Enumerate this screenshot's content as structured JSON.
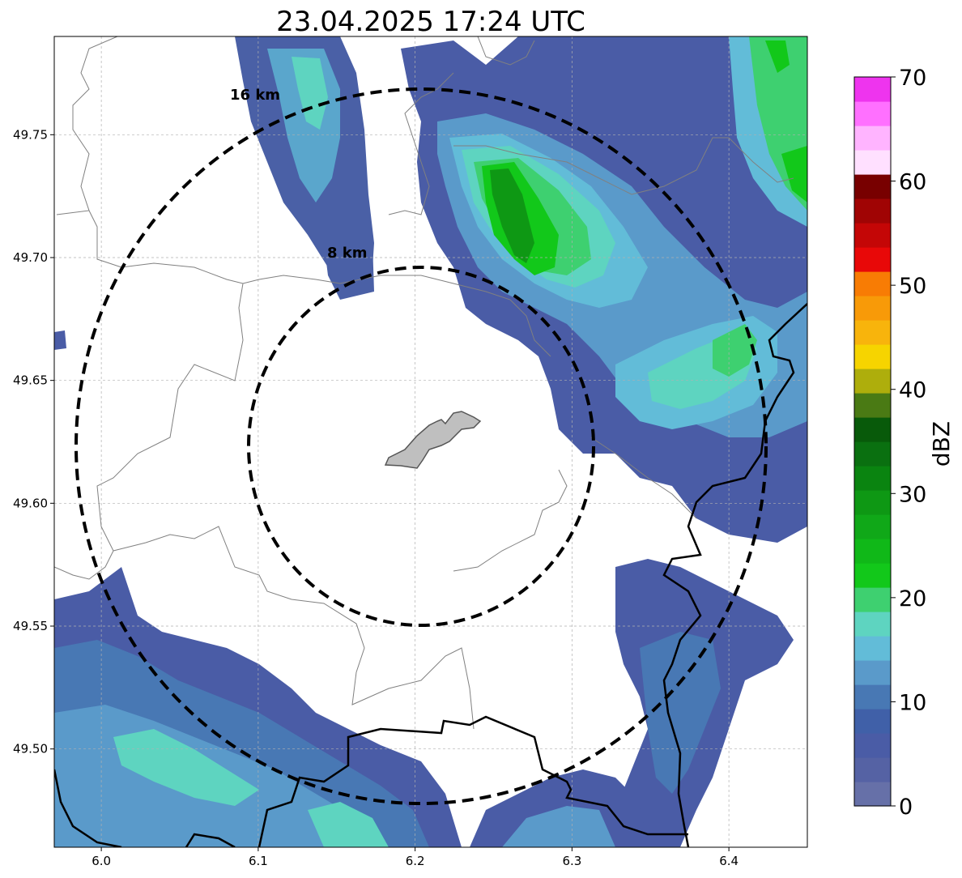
{
  "title": "23.04.2025 17:24 UTC",
  "colors": {
    "background": "#ffffff",
    "site": "#bfbfbf",
    "border": "#000000",
    "region_line": "#808080"
  },
  "map": {
    "lon_range": [
      5.97,
      6.45
    ],
    "lat_range": [
      49.46,
      49.79
    ],
    "lon_ticks": [
      "6.0",
      "6.1",
      "6.2",
      "6.3",
      "6.4"
    ],
    "lat_ticks": [
      "49.50",
      "49.55",
      "49.60",
      "49.65",
      "49.70",
      "49.75"
    ],
    "grid": true,
    "range_rings": [
      {
        "label": "8 km"
      },
      {
        "label": "16 km"
      }
    ]
  },
  "colorbar": {
    "label": "dBZ",
    "ticks": [
      "0",
      "10",
      "20",
      "30",
      "40",
      "50",
      "60",
      "70"
    ],
    "range": [
      0,
      70
    ],
    "colors": [
      "#6670a8",
      "#5562a4",
      "#4a5ca6",
      "#4060a8",
      "#4878b4",
      "#5a9aca",
      "#62bcd8",
      "#5ed4c0",
      "#3ed070",
      "#12c81a",
      "#10b818",
      "#10a818",
      "#0e9814",
      "#0a8410",
      "#0a7010",
      "#085a0a",
      "#4a7a14",
      "#aeae0c",
      "#f6d400",
      "#f8b40c",
      "#f89a08",
      "#f87c04",
      "#e80808",
      "#c40606",
      "#a00404",
      "#780000",
      "#ffe0ff",
      "#ffb4ff",
      "#ff70ff",
      "#ee34ee"
    ]
  }
}
